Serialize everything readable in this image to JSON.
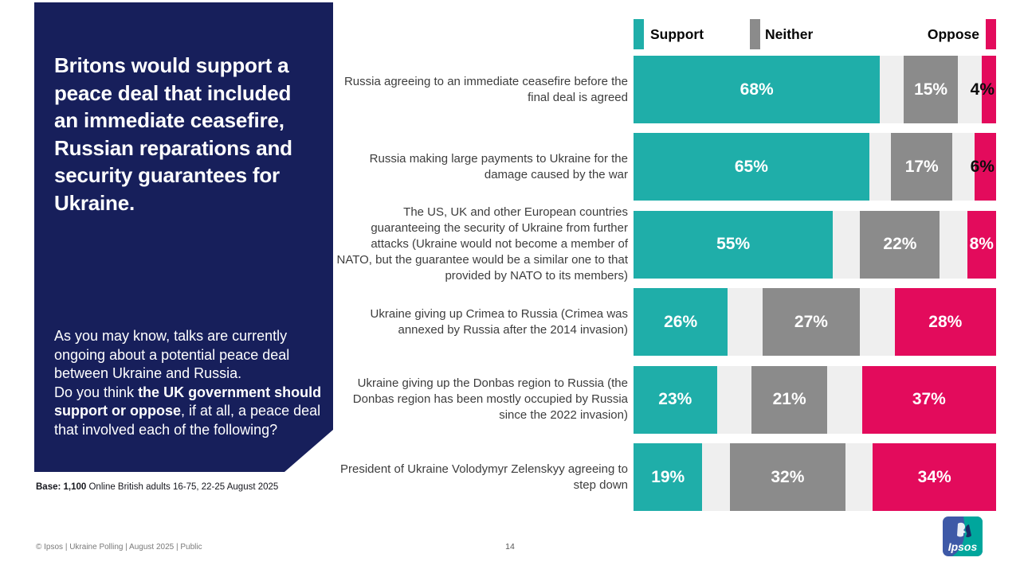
{
  "sidebar": {
    "title": "Britons would support a peace deal that included an immediate ceasefire, Russian reparations and security guarantees for Ukraine.",
    "intro": "As you may know, talks are currently ongoing about a potential peace deal between Ukraine and Russia.",
    "question_prefix": "Do you think ",
    "question_bold": "the UK government should support or oppose",
    "question_suffix": ", if at all, a peace deal that involved each of the following?"
  },
  "base_note": {
    "bold": "Base: 1,100",
    "rest": " Online British adults 16-75, 22-25 August 2025"
  },
  "footer": {
    "copyright": "© Ipsos | Ukraine Polling | August 2025 | Public",
    "page_number": "14"
  },
  "logo": {
    "text": "Ipsos"
  },
  "colors": {
    "sidebar_navy": "#171F5B",
    "track_gray": "#EFEFEF",
    "row_label_text": "#3D3D3D",
    "logo_blue": "#3E59A7",
    "logo_teal": "#00A69C"
  },
  "chart_data": {
    "type": "bar",
    "variant": "horizontal-stacked-percentage",
    "legend": [
      {
        "label": "Support",
        "color": "#1FAEA9"
      },
      {
        "label": "Neither",
        "color": "#8B8B8B"
      },
      {
        "label": "Oppose",
        "color": "#E30B5C"
      }
    ],
    "categories": [
      "Russia agreeing to an immediate ceasefire before the final deal is agreed",
      "Russia making large payments to Ukraine for the damage caused by the war",
      "The US, UK and other European countries guaranteeing the security of Ukraine from further attacks (Ukraine would not become a member of NATO, but the guarantee would be a similar one to that provided by NATO to its members)",
      "Ukraine giving up Crimea to Russia (Crimea was annexed by Russia after the 2014 invasion)",
      "Ukraine giving up the Donbas region to Russia (the Donbas region has been mostly occupied by Russia since the 2022 invasion)",
      "President of Ukraine Volodymyr Zelenskyy agreeing to step down"
    ],
    "series": [
      {
        "name": "Support",
        "values": [
          68,
          65,
          55,
          26,
          23,
          19
        ]
      },
      {
        "name": "Neither",
        "values": [
          15,
          17,
          22,
          27,
          21,
          32
        ]
      },
      {
        "name": "Oppose",
        "values": [
          4,
          6,
          8,
          28,
          37,
          34
        ]
      }
    ],
    "value_suffix": "%",
    "xlim": [
      0,
      100
    ],
    "layout": "Support anchored left, Oppose anchored right, Neither centered in remaining (don't know) space; oppose labels < 8% drawn outside in black"
  }
}
